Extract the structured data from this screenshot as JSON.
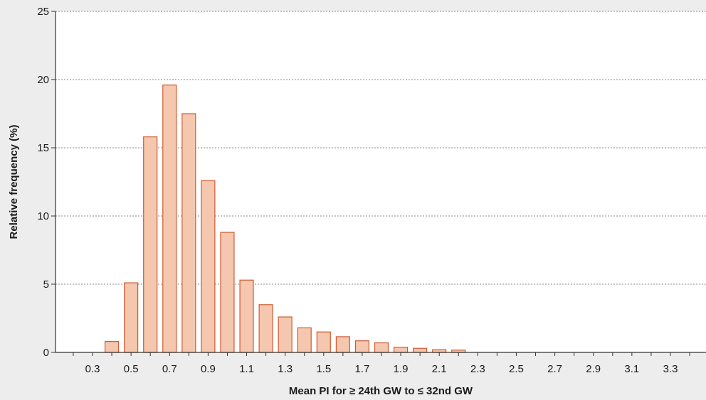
{
  "chart_data": {
    "type": "bar",
    "title": "",
    "xlabel": "Mean PI for ≥ 24th GW to ≤ 32nd GW",
    "ylabel": "Relative frequency (%)",
    "ylim": [
      0,
      25
    ],
    "yticks": [
      0,
      5,
      10,
      15,
      20,
      25
    ],
    "xticks": [
      "0.3",
      "0.5",
      "0.7",
      "0.9",
      "1.1",
      "1.3",
      "1.5",
      "1.7",
      "1.9",
      "2.1",
      "2.3",
      "2.5",
      "2.7",
      "2.9",
      "3.1",
      "3.3"
    ],
    "x_range": [
      0.2,
      3.4
    ],
    "grid": "horizontal dotted",
    "bar_fill": "#f5c7ae",
    "bar_stroke": "#cf5a32",
    "background": "#ededed",
    "plot_background": "#ffffff",
    "x": [
      0.4,
      0.5,
      0.6,
      0.7,
      0.8,
      0.9,
      1.0,
      1.1,
      1.2,
      1.3,
      1.4,
      1.5,
      1.6,
      1.7,
      1.8,
      1.9,
      2.0,
      2.1,
      2.2
    ],
    "values": [
      0.8,
      5.1,
      15.8,
      19.6,
      17.5,
      12.6,
      8.8,
      5.3,
      3.5,
      2.6,
      1.8,
      1.5,
      1.15,
      0.85,
      0.7,
      0.38,
      0.3,
      0.2,
      0.17
    ]
  }
}
